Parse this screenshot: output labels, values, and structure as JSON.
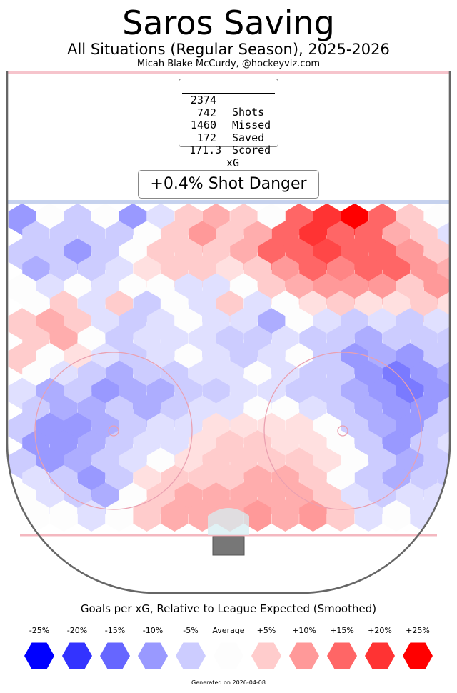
{
  "header": {
    "title": "Saros Saving",
    "subtitle": "All Situations (Regular Season), 2025-2026",
    "byline": "Micah Blake McCurdy, @hockeyviz.com"
  },
  "stats": {
    "shots_num": "2374",
    "shots_lbl": "Shots",
    "missed_num": "742",
    "missed_lbl": "Missed",
    "saved_num": "1460",
    "saved_lbl": "Saved",
    "scored_num": "172",
    "scored_lbl": "Scored",
    "xg_num": "171.3",
    "xg_lbl": "xG"
  },
  "shot_danger": "+0.4% Shot Danger",
  "legend": {
    "title": "Goals per xG, Relative to League Expected (Smoothed)",
    "items": [
      {
        "label": "-25%",
        "color": "#0000ff"
      },
      {
        "label": "-20%",
        "color": "#3333ff"
      },
      {
        "label": "-15%",
        "color": "#6666ff"
      },
      {
        "label": "-10%",
        "color": "#9999ff"
      },
      {
        "label": "-5%",
        "color": "#ccccff"
      },
      {
        "label": "Average",
        "color": "#fdfdfd"
      },
      {
        "label": "+5%",
        "color": "#ffcccc"
      },
      {
        "label": "+10%",
        "color": "#ff9999"
      },
      {
        "label": "+15%",
        "color": "#ff6666"
      },
      {
        "label": "+20%",
        "color": "#ff3333"
      },
      {
        "label": "+25%",
        "color": "#ff0000"
      }
    ]
  },
  "footer": "Generated on 2026-04-08",
  "chart_data": {
    "type": "heatmap",
    "value_unit": "% goals per xG relative to league expected",
    "range": [
      -25,
      25
    ],
    "rows": [
      [
        -10,
        0,
        -5,
        0,
        -10,
        -3,
        5,
        8,
        5,
        0,
        15,
        20,
        25,
        15,
        5,
        0,
        -5
      ],
      [
        -5,
        -5,
        -5,
        -5,
        0,
        5,
        10,
        5,
        8,
        15,
        20,
        15,
        15,
        8,
        5,
        -3
      ],
      [
        -5,
        -5,
        -10,
        -5,
        0,
        5,
        5,
        5,
        8,
        15,
        15,
        18,
        15,
        15,
        10,
        5,
        0
      ],
      [
        -8,
        -5,
        -5,
        -3,
        3,
        5,
        5,
        3,
        5,
        10,
        15,
        12,
        15,
        15,
        10,
        8
      ],
      [
        0,
        -3,
        0,
        -3,
        0,
        0,
        -3,
        -3,
        0,
        5,
        8,
        10,
        10,
        10,
        5,
        10,
        5
      ],
      [
        0,
        5,
        -3,
        5,
        -5,
        0,
        -3,
        5,
        -3,
        0,
        3,
        5,
        3,
        3,
        5,
        3
      ],
      [
        5,
        8,
        5,
        -3,
        -5,
        -3,
        0,
        -3,
        -3,
        -8,
        0,
        -3,
        -5,
        -3,
        -5,
        -3,
        -3
      ],
      [
        5,
        8,
        0,
        -5,
        -3,
        -3,
        -3,
        -5,
        -5,
        -3,
        -5,
        -5,
        -8,
        -5,
        -5,
        -5
      ],
      [
        5,
        0,
        3,
        -3,
        -5,
        -3,
        0,
        -3,
        -5,
        -3,
        0,
        -5,
        -10,
        -8,
        -10,
        -5,
        -5
      ],
      [
        0,
        -3,
        -5,
        -8,
        -5,
        -5,
        -3,
        -3,
        0,
        -3,
        -5,
        -5,
        -10,
        -13,
        -10,
        -8
      ],
      [
        -3,
        -8,
        -5,
        -10,
        -8,
        -8,
        -5,
        -5,
        -3,
        -3,
        -5,
        -5,
        -8,
        -10,
        -13,
        -10,
        -5
      ],
      [
        -5,
        -8,
        -8,
        -5,
        -8,
        -5,
        -3,
        -3,
        0,
        0,
        -3,
        -5,
        -8,
        -10,
        -10,
        -5
      ],
      [
        -5,
        -10,
        -10,
        -8,
        -5,
        -3,
        -3,
        3,
        3,
        3,
        3,
        0,
        -5,
        -8,
        -10,
        -5,
        -3
      ],
      [
        -10,
        -10,
        -8,
        -5,
        -3,
        -3,
        3,
        5,
        5,
        3,
        3,
        0,
        -5,
        -10,
        -5,
        -3
      ],
      [
        -5,
        -10,
        -8,
        -5,
        -3,
        0,
        3,
        5,
        5,
        5,
        5,
        3,
        0,
        -5,
        -8,
        -5,
        -5
      ],
      [
        -3,
        -5,
        -10,
        -5,
        3,
        5,
        5,
        5,
        8,
        8,
        5,
        0,
        -5,
        -8,
        -5,
        -5
      ],
      [
        0,
        -3,
        -5,
        -8,
        0,
        5,
        8,
        8,
        8,
        8,
        8,
        5,
        -3,
        -5,
        -3,
        -3,
        0
      ],
      [
        0,
        0,
        -3,
        0,
        5,
        8,
        8,
        8,
        10,
        8,
        10,
        5,
        -3,
        0,
        -3,
        -3
      ]
    ]
  }
}
